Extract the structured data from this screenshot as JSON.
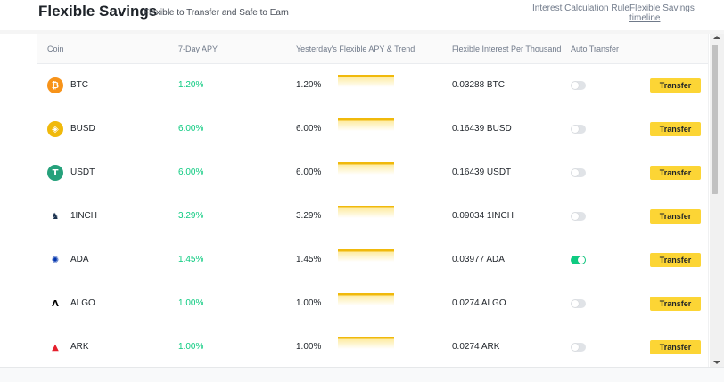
{
  "header": {
    "title": "Flexible Savings",
    "subtitle": "Flexible to Transfer and Safe to Earn",
    "links": [
      "Interest Calculation Rule",
      "Flexible Savings timeline"
    ]
  },
  "table": {
    "columns": [
      "Coin",
      "7-Day APY",
      "Yesterday's Flexible APY & Trend",
      "Flexible Interest Per Thousand",
      "Auto Transfer"
    ],
    "rows": [
      {
        "coin": "BTC",
        "apy7": "1.20%",
        "yesterday_apy": "1.20%",
        "per_thousand": "0.03288 BTC",
        "auto_transfer": false,
        "action": "Transfer",
        "icon": "btc-icon",
        "icon_color": "#f7931a"
      },
      {
        "coin": "BUSD",
        "apy7": "6.00%",
        "yesterday_apy": "6.00%",
        "per_thousand": "0.16439 BUSD",
        "auto_transfer": false,
        "action": "Transfer",
        "icon": "busd-icon",
        "icon_color": "#f0b90b"
      },
      {
        "coin": "USDT",
        "apy7": "6.00%",
        "yesterday_apy": "6.00%",
        "per_thousand": "0.16439 USDT",
        "auto_transfer": false,
        "action": "Transfer",
        "icon": "usdt-icon",
        "icon_color": "#26a17b"
      },
      {
        "coin": "1INCH",
        "apy7": "3.29%",
        "yesterday_apy": "3.29%",
        "per_thousand": "0.09034 1INCH",
        "auto_transfer": false,
        "action": "Transfer",
        "icon": "1inch-icon",
        "icon_color": "#1b314f"
      },
      {
        "coin": "ADA",
        "apy7": "1.45%",
        "yesterday_apy": "1.45%",
        "per_thousand": "0.03977 ADA",
        "auto_transfer": true,
        "action": "Transfer",
        "icon": "ada-icon",
        "icon_color": "#0033ad"
      },
      {
        "coin": "ALGO",
        "apy7": "1.00%",
        "yesterday_apy": "1.00%",
        "per_thousand": "0.0274 ALGO",
        "auto_transfer": false,
        "action": "Transfer",
        "icon": "algo-icon",
        "icon_color": "#000000"
      },
      {
        "coin": "ARK",
        "apy7": "1.00%",
        "yesterday_apy": "1.00%",
        "per_thousand": "0.0274 ARK",
        "auto_transfer": false,
        "action": "Transfer",
        "icon": "ark-icon",
        "icon_color": "#e51f2c"
      }
    ]
  },
  "colors": {
    "accent": "#fcd535",
    "positive": "#0ecb81",
    "trend": "#f0b90b"
  }
}
